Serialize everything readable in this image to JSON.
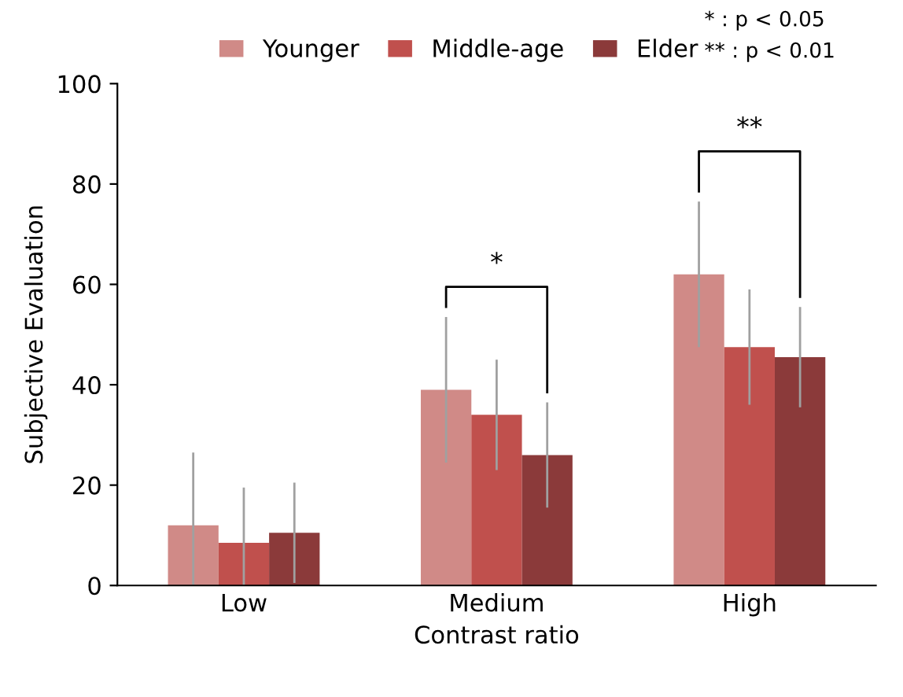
{
  "chart_data": {
    "type": "bar",
    "xlabel": "Contrast ratio",
    "ylabel": "Subjective Evaluation",
    "categories": [
      "Low",
      "Medium",
      "High"
    ],
    "series": [
      {
        "name": "Younger",
        "color": "#d08a87",
        "values": [
          12,
          39,
          62
        ],
        "errors": [
          14.5,
          14.5,
          14.5
        ]
      },
      {
        "name": "Middle-age",
        "color": "#c0504d",
        "values": [
          8.5,
          34,
          47.5
        ],
        "errors": [
          11,
          11,
          11.5
        ]
      },
      {
        "name": "Elder",
        "color": "#8b3a3a",
        "values": [
          10.5,
          26,
          45.5
        ],
        "errors": [
          10,
          10.5,
          10
        ]
      }
    ],
    "ylim": [
      0,
      100
    ],
    "yticks": [
      0,
      20,
      40,
      60,
      80,
      100
    ],
    "grid": false,
    "legend": "top",
    "annotations": [
      "*",
      "**",
      "* : p < 0.05",
      "** : p < 0.01"
    ]
  }
}
